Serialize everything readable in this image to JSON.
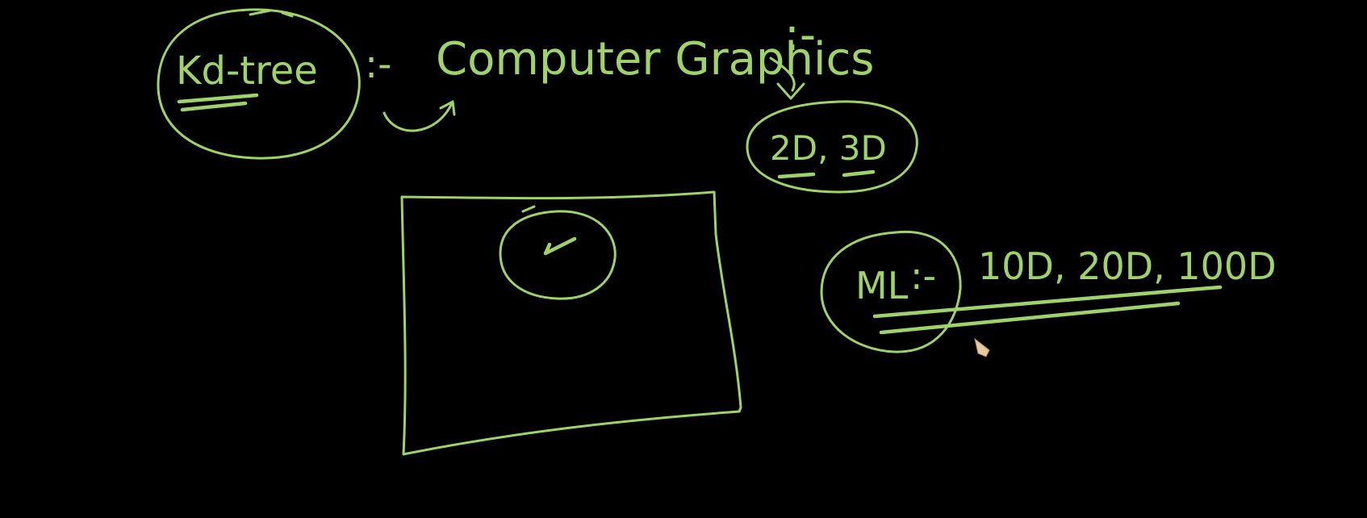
{
  "labels": {
    "kd_tree": "Kd-tree",
    "kd_sep": ":-",
    "computer_graphics": "Computer Graphics",
    "cg_sep": ":-",
    "dims_graphics": "2D, 3D",
    "ml": "ML",
    "ml_sep": ":-",
    "dims_ml": "10D, 20D, 100D"
  },
  "colors": {
    "background": "#000000",
    "ink": "#9fd26a",
    "cursor": "#e8c9a0"
  },
  "icons": {
    "cursor": "pencil-cursor-icon"
  }
}
